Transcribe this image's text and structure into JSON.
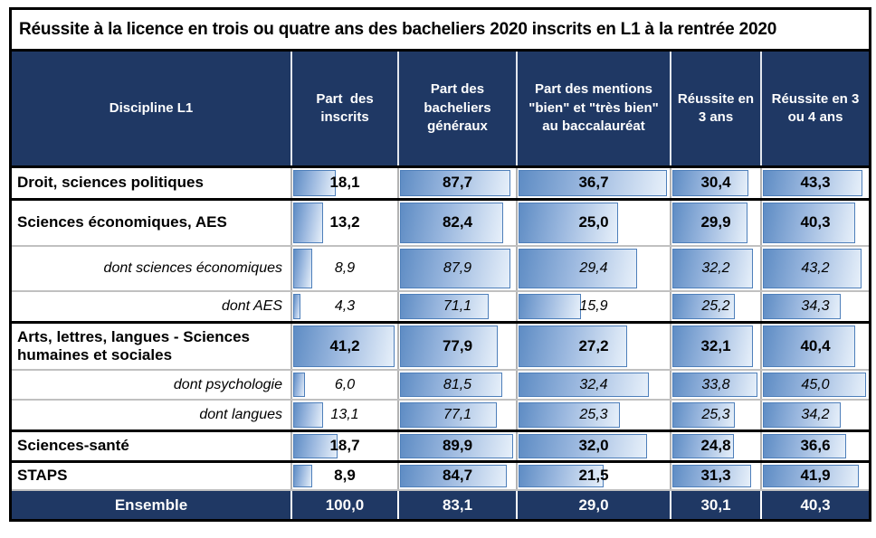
{
  "colors": {
    "header_background": "#1F3864",
    "header_text": "#FFFFFF",
    "bar_fill_start": "#5E8CC4",
    "bar_fill_end": "#E7F0FA",
    "bar_border": "#4E7FBA",
    "grid_gray": "#B3B3B3",
    "outer_border": "#000000"
  },
  "chart_data": {
    "type": "table",
    "title": "Réussite à la licence en trois ou quatre ans des bacheliers 2020 inscrits en L1 à la rentrée 2020",
    "columns": [
      "Discipline L1",
      "Part  des inscrits",
      "Part des bacheliers généraux",
      "Part des mentions \"bien\" et \"très bien\" au baccalauréat",
      "Réussite en 3 ans",
      "Réussite en 3 ou 4 ans"
    ],
    "bar_scaling": "in-cell data bar width proportional to value divided by column maximum (data rows only)",
    "rows": [
      {
        "label": "Droit, sciences politiques",
        "style": "main",
        "border_bottom": "black",
        "values": [
          18.1,
          87.7,
          36.7,
          30.4,
          43.3
        ],
        "display": [
          "18,1",
          "87,7",
          "36,7",
          "30,4",
          "43,3"
        ]
      },
      {
        "label": "Sciences économiques, AES",
        "style": "main",
        "border_bottom": "gray",
        "values": [
          13.2,
          82.4,
          25.0,
          29.9,
          40.3
        ],
        "display": [
          "13,2",
          "82,4",
          "25,0",
          "29,9",
          "40,3"
        ]
      },
      {
        "label": "dont sciences économiques",
        "style": "sub",
        "border_bottom": "gray",
        "values": [
          8.9,
          87.9,
          29.4,
          32.2,
          43.2
        ],
        "display": [
          "8,9",
          "87,9",
          "29,4",
          "32,2",
          "43,2"
        ]
      },
      {
        "label": "dont AES",
        "style": "sub",
        "border_bottom": "black",
        "values": [
          4.3,
          71.1,
          15.9,
          25.2,
          34.3
        ],
        "display": [
          "4,3",
          "71,1",
          "15,9",
          "25,2",
          "34,3"
        ]
      },
      {
        "label": "Arts, lettres, langues - Sciences humaines et sociales",
        "style": "main",
        "border_bottom": "gray",
        "values": [
          41.2,
          77.9,
          27.2,
          32.1,
          40.4
        ],
        "display": [
          "41,2",
          "77,9",
          "27,2",
          "32,1",
          "40,4"
        ]
      },
      {
        "label": "dont psychologie",
        "style": "sub",
        "border_bottom": "gray",
        "values": [
          6.0,
          81.5,
          32.4,
          33.8,
          45.0
        ],
        "display": [
          "6,0",
          "81,5",
          "32,4",
          "33,8",
          "45,0"
        ]
      },
      {
        "label": "dont langues",
        "style": "sub",
        "border_bottom": "black",
        "values": [
          13.1,
          77.1,
          25.3,
          25.3,
          34.2
        ],
        "display": [
          "13,1",
          "77,1",
          "25,3",
          "25,3",
          "34,2"
        ]
      },
      {
        "label": "Sciences-santé",
        "style": "main",
        "border_bottom": "black",
        "values": [
          18.7,
          89.9,
          32.0,
          24.8,
          36.6
        ],
        "display": [
          "18,7",
          "89,9",
          "32,0",
          "24,8",
          "36,6"
        ]
      },
      {
        "label": "STAPS",
        "style": "main",
        "border_bottom": "gray",
        "values": [
          8.9,
          84.7,
          21.5,
          31.3,
          41.9
        ],
        "display": [
          "8,9",
          "84,7",
          "21,5",
          "31,3",
          "41,9"
        ]
      }
    ],
    "footer": {
      "label": "Ensemble",
      "values": [
        100.0,
        83.1,
        29.0,
        30.1,
        40.3
      ],
      "display": [
        "100,0",
        "83,1",
        "29,0",
        "30,1",
        "40,3"
      ]
    }
  }
}
